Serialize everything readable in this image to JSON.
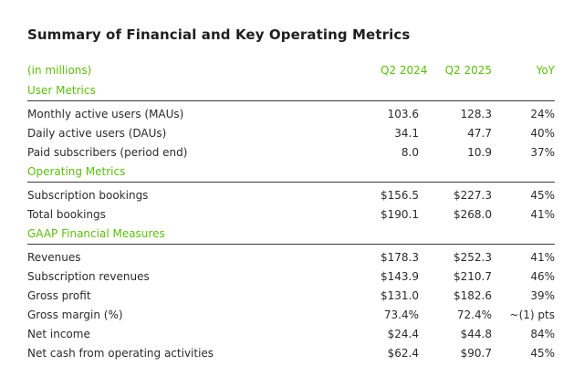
{
  "title": "Summary of Financial and Key Operating Metrics",
  "header": {
    "label": "(in millions)",
    "col1": "Q2 2024",
    "col2": "Q2 2025",
    "col3": "YoY"
  },
  "sections": [
    {
      "name": "User Metrics",
      "rows": [
        {
          "label": "Monthly active users (MAUs)",
          "q2_2024": "103.6",
          "q2_2025": "128.3",
          "yoy": "24%"
        },
        {
          "label": "Daily active users (DAUs)",
          "q2_2024": "34.1",
          "q2_2025": "47.7",
          "yoy": "40%"
        },
        {
          "label": "Paid subscribers (period end)",
          "q2_2024": "8.0",
          "q2_2025": "10.9",
          "yoy": "37%"
        }
      ]
    },
    {
      "name": "Operating Metrics",
      "rows": [
        {
          "label": "Subscription bookings",
          "q2_2024": "$156.5",
          "q2_2025": "$227.3",
          "yoy": "45%"
        },
        {
          "label": "Total bookings",
          "q2_2024": "$190.1",
          "q2_2025": "$268.0",
          "yoy": "41%"
        }
      ]
    },
    {
      "name": "GAAP Financial Measures",
      "rows": [
        {
          "label": "Revenues",
          "q2_2024": "$178.3",
          "q2_2025": "$252.3",
          "yoy": "41%"
        },
        {
          "label": "Subscription revenues",
          "q2_2024": "$143.9",
          "q2_2025": "$210.7",
          "yoy": "46%"
        },
        {
          "label": "Gross profit",
          "q2_2024": "$131.0",
          "q2_2025": "$182.6",
          "yoy": "39%"
        },
        {
          "label": "Gross margin (%)",
          "q2_2024": "73.4%",
          "q2_2025": "72.4%",
          "yoy": "~(1) pts"
        },
        {
          "label": "Net income",
          "q2_2024": "$24.4",
          "q2_2025": "$44.8",
          "yoy": "84%"
        },
        {
          "label": "Net cash from operating activities",
          "q2_2024": "$62.4",
          "q2_2025": "$90.7",
          "yoy": "45%"
        }
      ]
    }
  ],
  "colors": {
    "accent": "#5bbf0a",
    "text": "#2b2b2b",
    "rule": "#3a3a3a"
  }
}
